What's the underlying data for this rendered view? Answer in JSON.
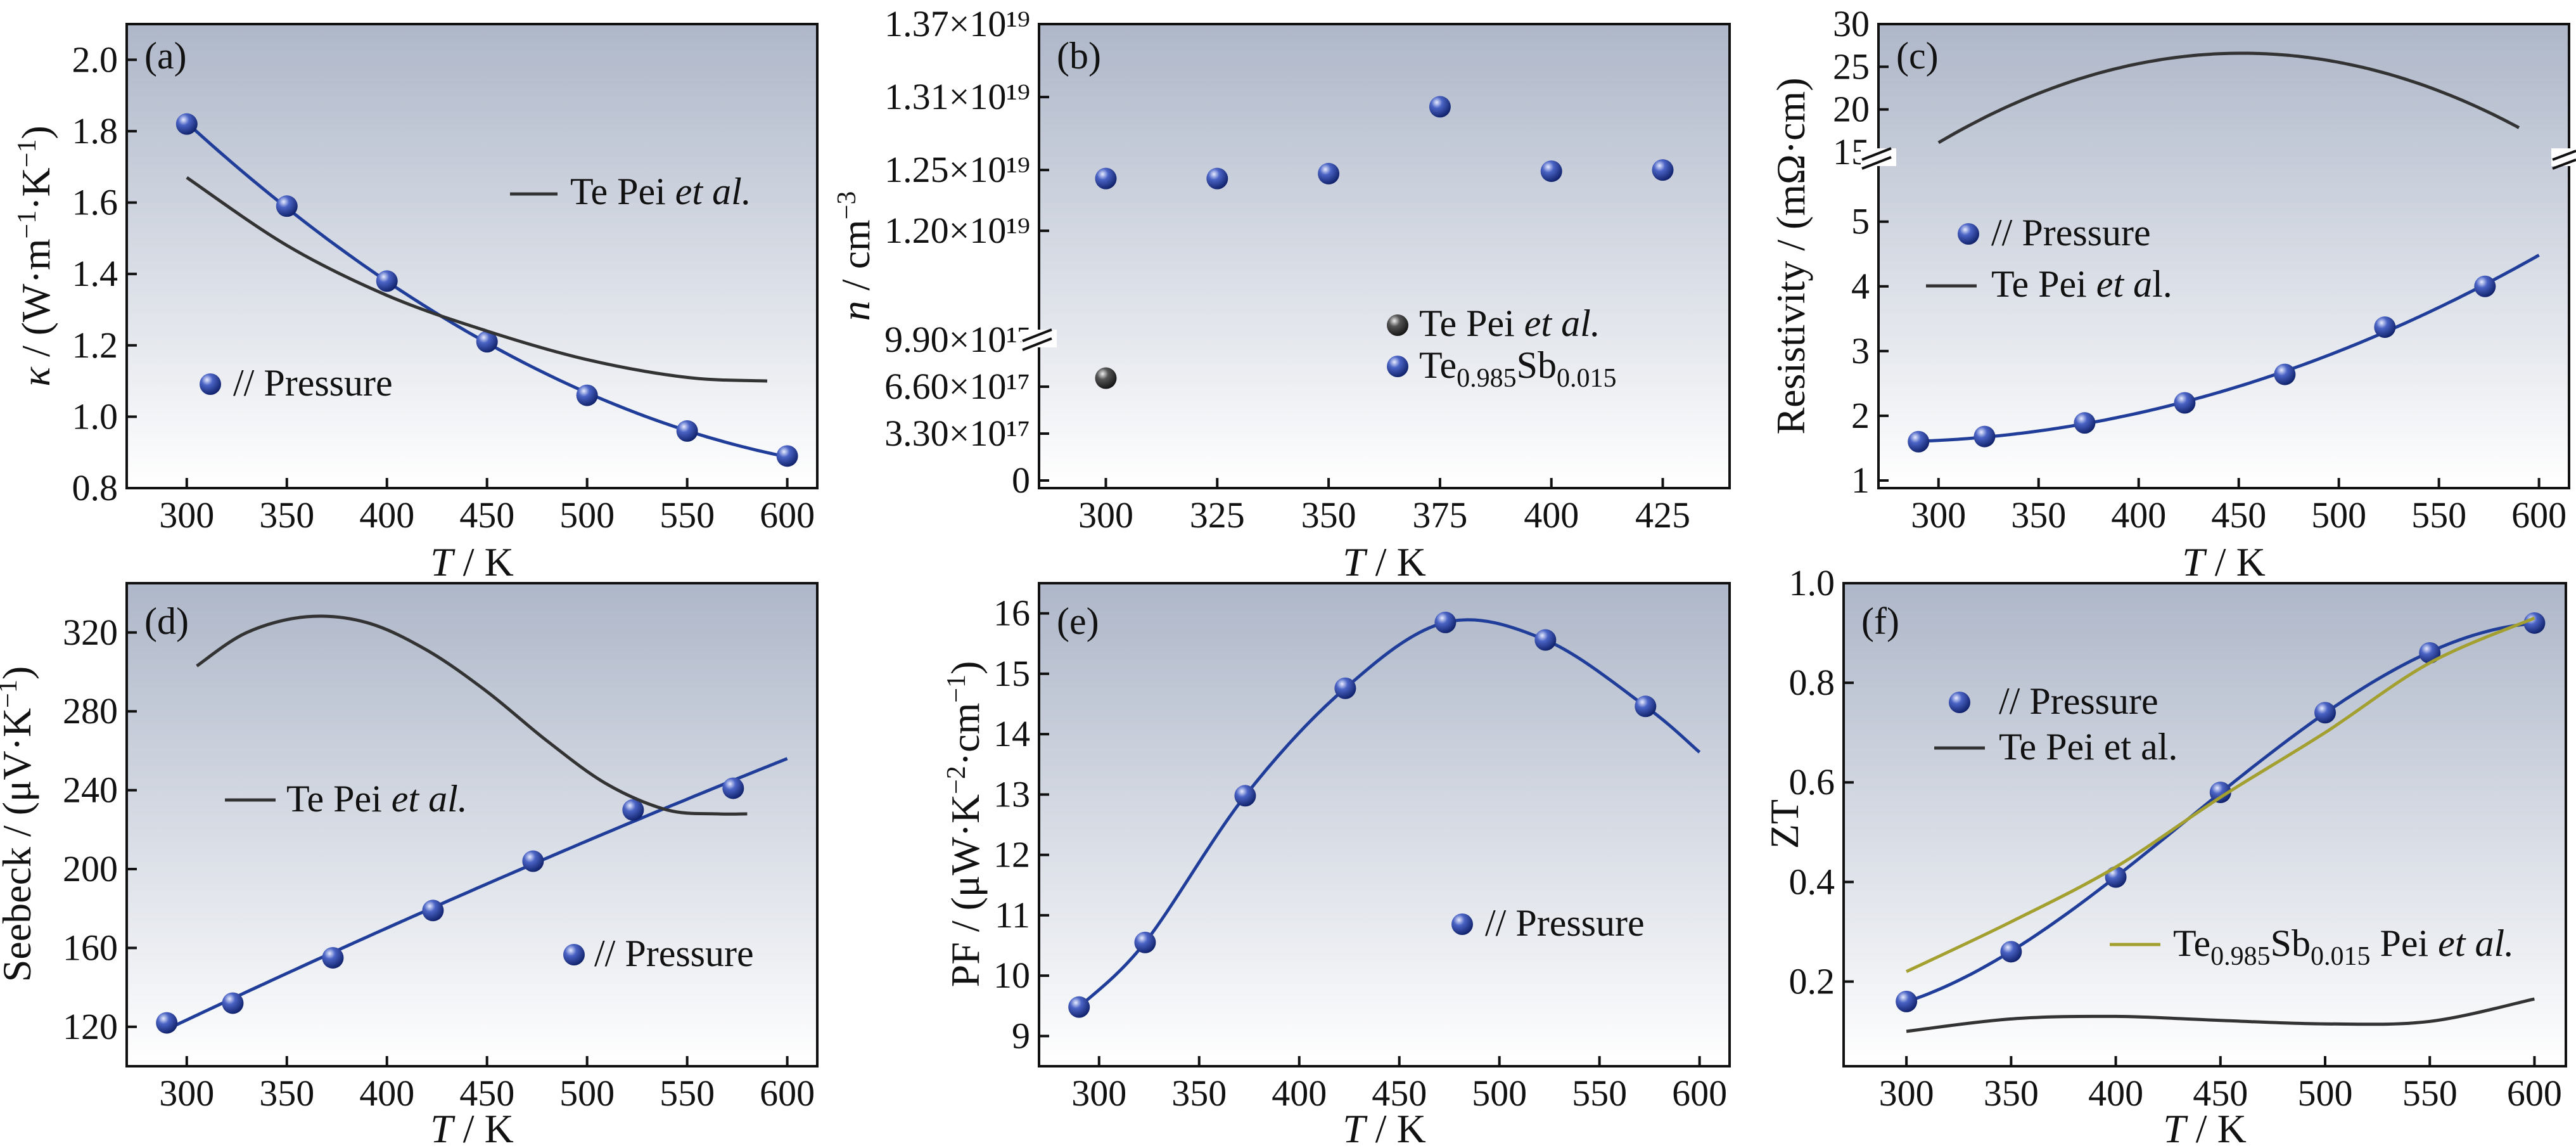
{
  "colors": {
    "bg_top": "#aeb7c9",
    "bg_bottom": "#ffffff",
    "fit_line": "#1f3d99",
    "marker": "#2c46a8",
    "ref_line": "#333333",
    "ref_marker": "#333333",
    "olive_line": "#a3a030"
  },
  "chart_data": [
    {
      "id": "a",
      "type": "scatter",
      "panel_label": "(a)",
      "xlabel": "T / K",
      "ylabel": "κ / (W·m⁻¹·K⁻¹)",
      "xlim": [
        270,
        615
      ],
      "ylim": [
        0.8,
        2.1
      ],
      "xticks": [
        "300",
        "350",
        "400",
        "450",
        "500",
        "550",
        "600"
      ],
      "yticks": [
        "0.8",
        "1.0",
        "1.2",
        "1.4",
        "1.6",
        "1.8",
        "2.0"
      ],
      "series": [
        {
          "name": "// Pressure",
          "kind": "markers+fit",
          "x": [
            300,
            350,
            400,
            450,
            500,
            550,
            600
          ],
          "y": [
            1.82,
            1.59,
            1.38,
            1.21,
            1.06,
            0.96,
            0.89
          ]
        },
        {
          "name": "Te Pei et al.",
          "kind": "line",
          "x": [
            300,
            350,
            400,
            450,
            500,
            550,
            590
          ],
          "y": [
            1.67,
            1.48,
            1.34,
            1.24,
            1.16,
            1.11,
            1.1
          ]
        }
      ]
    },
    {
      "id": "b",
      "type": "scatter",
      "panel_label": "(b)",
      "xlabel": "T / K",
      "ylabel": "n / cm⁻³",
      "xlim": [
        285,
        440
      ],
      "xticks": [
        "300",
        "325",
        "350",
        "375",
        "400",
        "425"
      ],
      "yticks_upper": [
        "1.20×10¹⁹",
        "1.25×10¹⁹",
        "1.31×10¹⁹",
        "1.37×10¹⁹"
      ],
      "yticks_lower": [
        "0",
        "3.30×10¹⁷",
        "6.60×10¹⁷",
        "9.90×10¹⁷"
      ],
      "ylim_upper": [
        1.15e+19,
        1.37e+19
      ],
      "ylim_lower": [
        0,
        9.9e+17
      ],
      "series": [
        {
          "name": "Te Pei et al.",
          "kind": "markers",
          "x": [
            300
          ],
          "y": [
            7.2e+17
          ]
        },
        {
          "name": "Te0.985Sb0.015",
          "kind": "markers",
          "x": [
            300,
            325,
            350,
            375,
            400,
            425
          ],
          "y": [
            1.243e+19,
            1.243e+19,
            1.247e+19,
            1.302e+19,
            1.249e+19,
            1.25e+19
          ]
        }
      ]
    },
    {
      "id": "c",
      "type": "scatter",
      "panel_label": "(c)",
      "xlabel": "T / K",
      "ylabel": "Resistivity / (mΩ·cm)",
      "xlim": [
        270,
        615
      ],
      "ylim_lower": [
        1,
        5.8
      ],
      "ylim_upper": [
        15,
        30
      ],
      "xticks": [
        "300",
        "350",
        "400",
        "450",
        "500",
        "550",
        "600"
      ],
      "yticks_lower": [
        "1",
        "2",
        "3",
        "4",
        "5"
      ],
      "yticks_upper": [
        "15",
        "20",
        "25",
        "30"
      ],
      "series": [
        {
          "name": "// Pressure",
          "kind": "markers+fit",
          "x": [
            290,
            323,
            373,
            423,
            473,
            523,
            573
          ],
          "y": [
            1.6,
            1.68,
            1.89,
            2.2,
            2.64,
            3.37,
            4.0
          ]
        },
        {
          "name": "Te Pei et al.",
          "kind": "line",
          "x": [
            300,
            350,
            400,
            450,
            500,
            550,
            590
          ],
          "y": [
            16,
            22,
            25.5,
            26.5,
            25.5,
            22,
            18
          ]
        }
      ]
    },
    {
      "id": "d",
      "type": "scatter",
      "panel_label": "(d)",
      "xlabel": "T / K",
      "ylabel": "Seebeck / (μV·K⁻¹)",
      "xlim": [
        270,
        615
      ],
      "ylim": [
        100,
        345
      ],
      "xticks": [
        "300",
        "350",
        "400",
        "450",
        "500",
        "550",
        "600"
      ],
      "yticks": [
        "120",
        "160",
        "200",
        "240",
        "280",
        "320"
      ],
      "series": [
        {
          "name": "// Pressure",
          "kind": "markers+fit",
          "x": [
            290,
            323,
            373,
            423,
            473,
            523,
            573
          ],
          "y": [
            122,
            132,
            155,
            179,
            204,
            230,
            241
          ]
        },
        {
          "name": "Te Pei et al.",
          "kind": "line",
          "x": [
            305,
            330,
            360,
            390,
            420,
            450,
            480,
            510,
            540,
            565,
            580
          ],
          "y": [
            303,
            320,
            328,
            325,
            311,
            290,
            265,
            243,
            230,
            228,
            228
          ]
        }
      ]
    },
    {
      "id": "e",
      "type": "scatter",
      "panel_label": "(e)",
      "xlabel": "T / K",
      "ylabel": "PF / (μW·K⁻²·cm⁻¹)",
      "xlim": [
        270,
        615
      ],
      "ylim": [
        8.5,
        16.5
      ],
      "xticks": [
        "300",
        "350",
        "400",
        "450",
        "500",
        "550",
        "600"
      ],
      "yticks": [
        "9",
        "10",
        "11",
        "12",
        "13",
        "14",
        "15",
        "16"
      ],
      "series": [
        {
          "name": "// Pressure",
          "kind": "markers+fit",
          "x": [
            290,
            323,
            373,
            423,
            473,
            523,
            573
          ],
          "y": [
            9.48,
            10.55,
            12.98,
            14.76,
            15.85,
            15.56,
            14.46
          ]
        }
      ]
    },
    {
      "id": "f",
      "type": "scatter",
      "panel_label": "(f)",
      "xlabel": "T / K",
      "ylabel": "ZT",
      "xlim": [
        270,
        615
      ],
      "ylim": [
        0.03,
        1.0
      ],
      "xticks": [
        "300",
        "350",
        "400",
        "450",
        "500",
        "550",
        "600"
      ],
      "yticks": [
        "0.2",
        "0.4",
        "0.6",
        "0.8",
        "1.0"
      ],
      "series": [
        {
          "name": "// Pressure",
          "kind": "markers+fit",
          "x": [
            300,
            350,
            400,
            450,
            500,
            550,
            600
          ],
          "y": [
            0.16,
            0.26,
            0.41,
            0.58,
            0.74,
            0.86,
            0.92
          ]
        },
        {
          "name": "Te Pei  et al.",
          "kind": "line",
          "x": [
            300,
            350,
            400,
            450,
            500,
            550,
            600
          ],
          "y": [
            0.1,
            0.125,
            0.13,
            0.122,
            0.115,
            0.12,
            0.165
          ]
        },
        {
          "name": "Te0.985Sb0.015 Pei et al.",
          "kind": "line",
          "x": [
            300,
            350,
            400,
            450,
            500,
            550,
            600
          ],
          "y": [
            0.22,
            0.32,
            0.43,
            0.57,
            0.7,
            0.84,
            0.93
          ]
        }
      ]
    }
  ],
  "labels": {
    "a_legend_ref": "Te Pei ",
    "a_legend_ref_it": "et al.",
    "a_legend_pressure": "// Pressure",
    "b_legend_ref": "Te Pei ",
    "b_legend_ref_it": "et al.",
    "b_legend_sb_main": "Te",
    "b_legend_sb_sub1": "0.985",
    "b_legend_sb_mid": "Sb",
    "b_legend_sb_sub2": "0.015",
    "c_legend_pressure": "// Pressure",
    "c_legend_ref": "Te Pei ",
    "c_legend_ref_it": "et a",
    "c_legend_ref_tail": "l.",
    "d_legend_ref": "Te Pei ",
    "d_legend_ref_it": "et al.",
    "d_legend_pressure": "// Pressure",
    "e_legend_pressure": "// Pressure",
    "f_legend_pressure": "// Pressure",
    "f_legend_ref": "Te Pei  et al.",
    "f_legend_sb_main": "Te",
    "f_legend_sb_sub1": "0.985",
    "f_legend_sb_mid": "Sb",
    "f_legend_sb_sub2": "0.015",
    "f_legend_sb_tail": " Pei ",
    "f_legend_sb_it": "et al.",
    "xlabel_T": "T",
    "xlabel_unit": " / K",
    "ylabel_a_k": "κ",
    "ylabel_a_unit": " / (W·m",
    "ylabel_a_sup1": "−1",
    "ylabel_a_mid": "·K",
    "ylabel_a_sup2": "−1",
    "ylabel_a_end": ")",
    "ylabel_b_n": "n",
    "ylabel_b_unit": " / cm",
    "ylabel_b_sup": "−3",
    "ylabel_c": "Resistivity / (mΩ·cm)",
    "ylabel_d": "Seebeck / (μV·K",
    "ylabel_d_sup": "−1",
    "ylabel_d_end": ")",
    "ylabel_e": "PF / (μW·K",
    "ylabel_e_sup1": "−2",
    "ylabel_e_mid": "·cm",
    "ylabel_e_sup2": "−1",
    "ylabel_e_end": ")",
    "ylabel_f": "ZT"
  }
}
